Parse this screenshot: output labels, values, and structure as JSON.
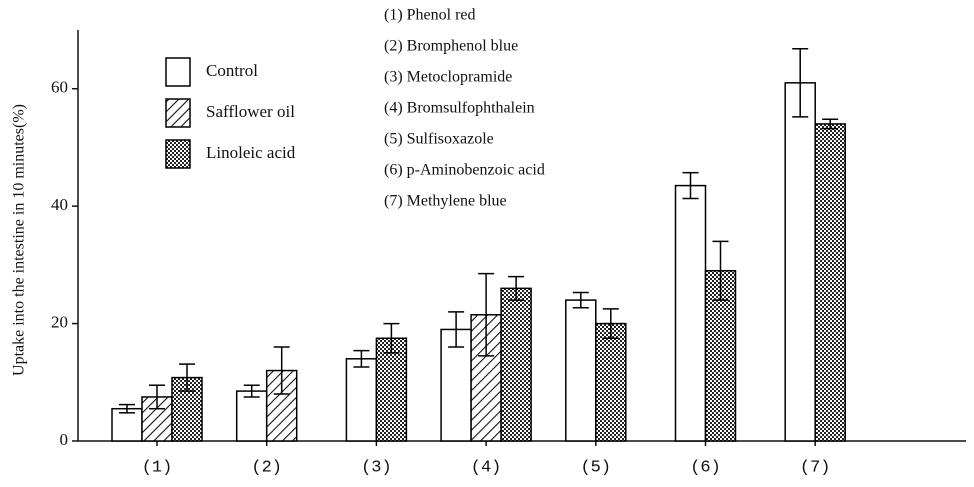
{
  "chart_data": {
    "type": "bar",
    "y_label": "Uptake into the intestine in 10 minutes(%)",
    "annotations": [
      "(1) Phenol red",
      "(2) Bromphenol blue",
      "(3) Metoclopramide",
      "(4) Bromsulfophthalein",
      "(5) Sulfisoxazole",
      "(6) p-Aminobenzoic acid",
      "(7) Methylene blue"
    ],
    "categories": [
      "(1)",
      "(2)",
      "(3)",
      "(4)",
      "(5)",
      "(6)",
      "(7)"
    ],
    "series": [
      {
        "name": "Control",
        "color": "#000000",
        "pattern": "none",
        "values": [
          5.5,
          8.5,
          14,
          19,
          24,
          43.5,
          61
        ],
        "errors": [
          0.7,
          1,
          1.4,
          3,
          1.3,
          2.2,
          5.8
        ]
      },
      {
        "name": "Safflower oil",
        "color": "#000000",
        "pattern": "hatch",
        "values": [
          7.5,
          12,
          null,
          21.5,
          null,
          null,
          null
        ],
        "errors": [
          2,
          4,
          null,
          7,
          null,
          null,
          null
        ]
      },
      {
        "name": "Linoleic acid",
        "color": "#000000",
        "pattern": "dots",
        "values": [
          10.8,
          null,
          17.5,
          26,
          20,
          29,
          54
        ],
        "errors": [
          2.3,
          null,
          2.5,
          2,
          2.5,
          5,
          0.8
        ]
      }
    ],
    "ylim": [
      0,
      70
    ],
    "yticks": [
      0,
      20,
      40,
      60
    ],
    "grid": false
  }
}
